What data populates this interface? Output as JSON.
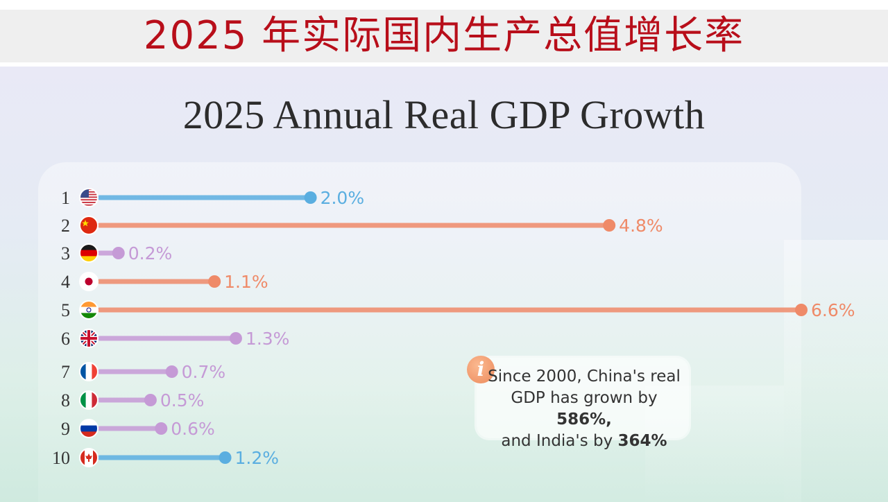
{
  "banner": {
    "title": "2025 年实际国内生产总值增长率"
  },
  "chart_data": {
    "type": "bar",
    "title": "2025 Annual Real GDP Growth",
    "categories": [
      "1",
      "2",
      "3",
      "4",
      "5",
      "6",
      "7",
      "8",
      "9",
      "10"
    ],
    "countries": [
      "United States",
      "China",
      "Germany",
      "Japan",
      "India",
      "United Kingdom",
      "France",
      "Italy",
      "Russia",
      "Canada"
    ],
    "values": [
      2.0,
      4.8,
      0.2,
      1.1,
      6.6,
      1.3,
      0.7,
      0.5,
      0.6,
      1.2
    ],
    "value_labels": [
      "2.0%",
      "4.8%",
      "0.2%",
      "1.1%",
      "6.6%",
      "1.3%",
      "0.7%",
      "0.5%",
      "0.6%",
      "1.2%"
    ],
    "colors": [
      "#5aaee0",
      "#ef8a68",
      "#c59ad6",
      "#ef8a68",
      "#ef8a68",
      "#c59ad6",
      "#c59ad6",
      "#c59ad6",
      "#c59ad6",
      "#5aaee0"
    ],
    "flag_icons": [
      "us-flag-icon",
      "china-flag-icon",
      "germany-flag-icon",
      "japan-flag-icon",
      "india-flag-icon",
      "uk-flag-icon",
      "france-flag-icon",
      "italy-flag-icon",
      "russia-flag-icon",
      "canada-flag-icon"
    ],
    "orientation": "horizontal",
    "xlim": [
      0,
      6.6
    ],
    "grid": false,
    "legend": "none"
  },
  "info": {
    "icon": "info-icon",
    "icon_label": "i",
    "line1": "Since 2000, China's real",
    "line2_pre": "GDP has grown by ",
    "line2_bold": "586%,",
    "line3_pre": "and India's by ",
    "line3_bold": "364%"
  }
}
